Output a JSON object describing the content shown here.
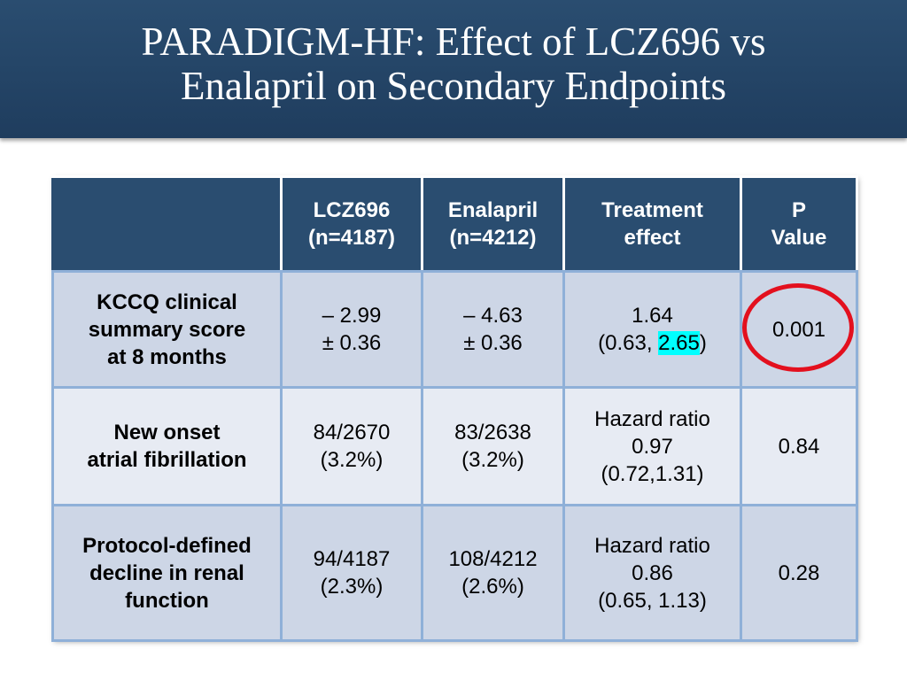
{
  "slide": {
    "title_line1": "PARADIGM-HF: Effect of LCZ696 vs",
    "title_line2": "Enalapril on Secondary Endpoints"
  },
  "table": {
    "headers": [
      {
        "line1": "",
        "line2": ""
      },
      {
        "line1": "LCZ696",
        "line2": "(n=4187)"
      },
      {
        "line1": "Enalapril",
        "line2": "(n=4212)"
      },
      {
        "line1": "Treatment",
        "line2": "effect"
      },
      {
        "line1": "P",
        "line2": "Value"
      }
    ],
    "rows": [
      {
        "label": [
          "KCCQ clinical",
          "summary score",
          "at 8 months"
        ],
        "lcz696": [
          "– 2.99",
          "± 0.36"
        ],
        "enalapril": [
          "– 4.63",
          "± 0.36"
        ],
        "effect": {
          "line1": "1.64",
          "ci_prefix": "(0.63, ",
          "ci_highlight": "2.65",
          "ci_suffix": ")"
        },
        "p": "0.001",
        "p_circled": true,
        "circle_color": "#e3101e"
      },
      {
        "label": [
          "New onset",
          "atrial fibrillation"
        ],
        "lcz696": [
          "84/2670",
          "(3.2%)"
        ],
        "enalapril": [
          "83/2638",
          "(3.2%)"
        ],
        "effect": [
          "Hazard ratio",
          "0.97",
          "(0.72,1.31)"
        ],
        "p": "0.84"
      },
      {
        "label": [
          "Protocol-defined",
          "decline in renal",
          "function"
        ],
        "lcz696": [
          "94/4187",
          "(2.3%)"
        ],
        "enalapril": [
          "108/4212",
          "(2.6%)"
        ],
        "effect": [
          "Hazard ratio",
          "0.86",
          "(0.65, 1.13)"
        ],
        "p": "0.28"
      }
    ]
  },
  "colors": {
    "title_bar": "#2a4d70",
    "header_bg": "#2a4d70",
    "row_dark": "#cdd6e6",
    "row_light": "#e7ebf3",
    "grid": "#8fb0d8",
    "highlight": "#00ffff"
  }
}
